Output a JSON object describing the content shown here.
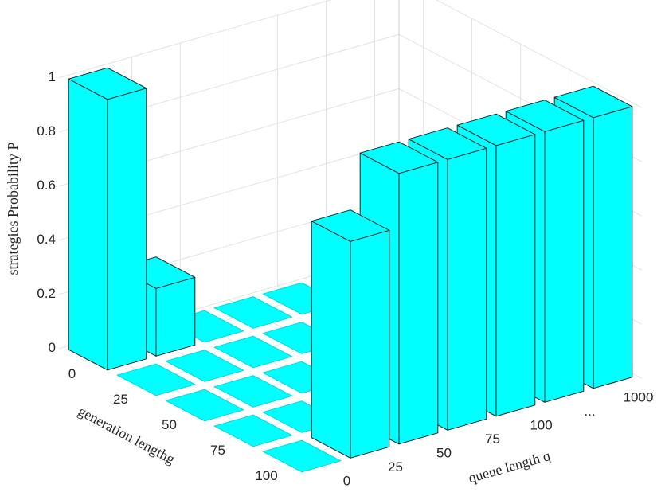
{
  "chart_data": {
    "type": "bar3d",
    "x_categories": [
      "0",
      "25",
      "50",
      "75",
      "100"
    ],
    "y_categories": [
      "0",
      "25",
      "50",
      "75",
      "100",
      "...",
      "1000"
    ],
    "values": [
      [
        1,
        0.25,
        0,
        0,
        0,
        0,
        0
      ],
      [
        0,
        0,
        0,
        0,
        0,
        0,
        0
      ],
      [
        0,
        0,
        0,
        0,
        0,
        0,
        0
      ],
      [
        0,
        0,
        0,
        0,
        0,
        0,
        0
      ],
      [
        0,
        0.8,
        1,
        1,
        1,
        1,
        1
      ]
    ],
    "xlabel": "generation lengthg",
    "ylabel": "queue length q",
    "zlabel": "strategies Probability P",
    "zlim": [
      0,
      1
    ],
    "zticks": [
      0,
      0.2,
      0.4,
      0.6,
      0.8,
      1
    ],
    "color": "#00ffff",
    "grid": true
  }
}
